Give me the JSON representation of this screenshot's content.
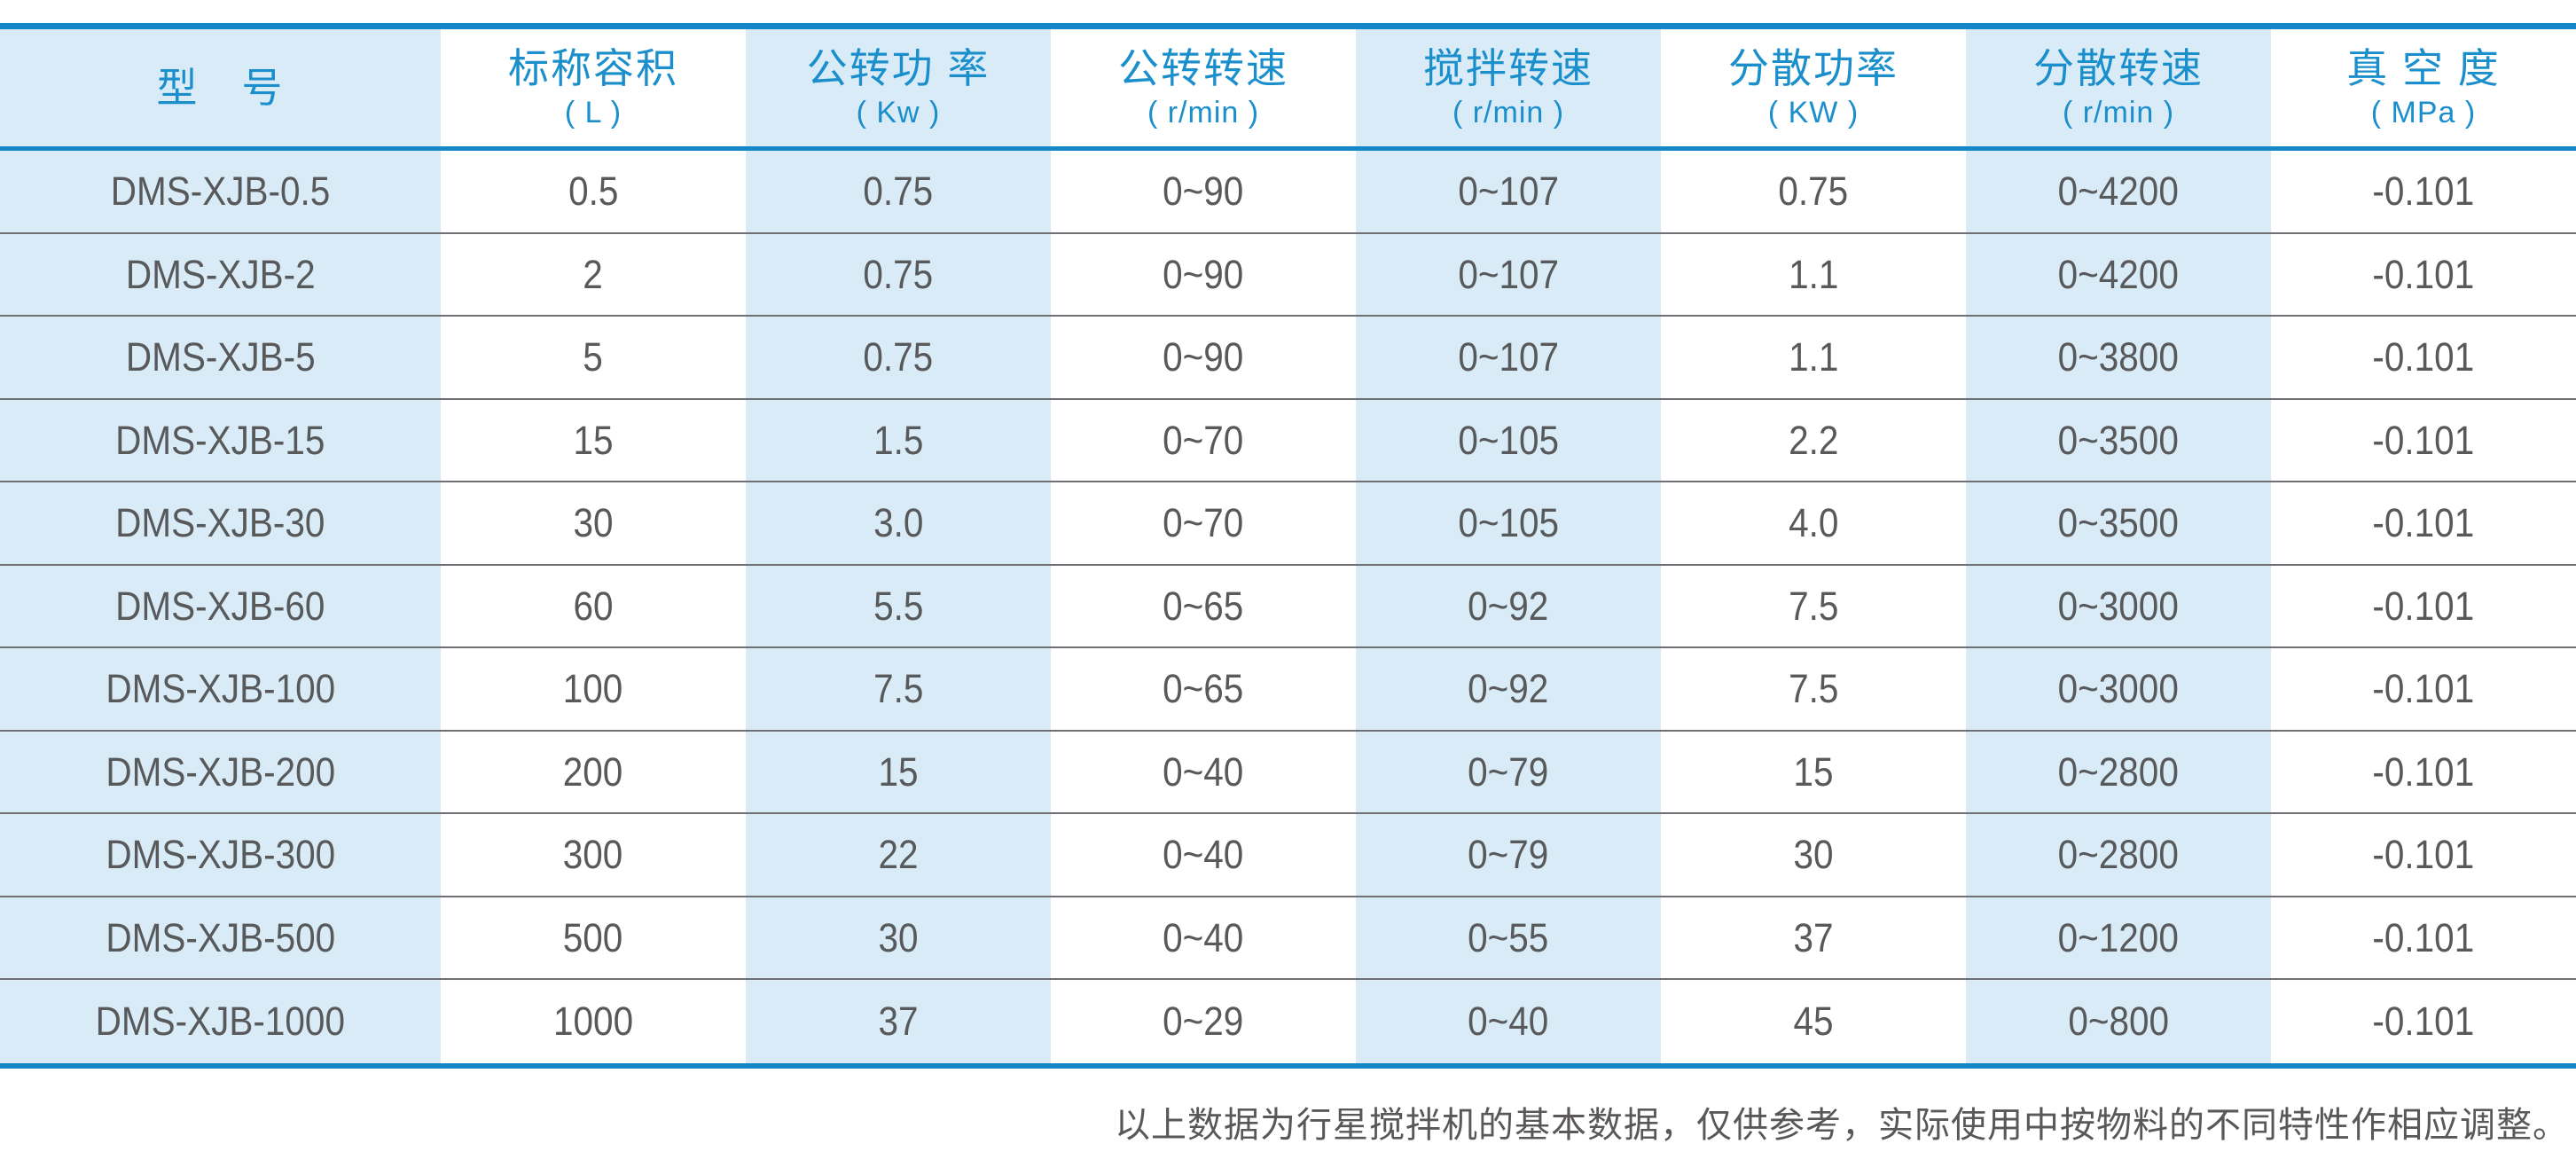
{
  "colors": {
    "accent_blue": "#1587c8",
    "header_text_blue": "#1a8fcc",
    "band_blue": "#d9ebf7",
    "row_line_gray": "#6e7073",
    "data_text": "#58595b",
    "footnote_text": "#5a5856",
    "page_bg": "#ffffff"
  },
  "table": {
    "columns": [
      {
        "key": "model",
        "name": "型　号",
        "unit": ""
      },
      {
        "key": "nominal-volume",
        "name": "标称容积",
        "unit": "( L )"
      },
      {
        "key": "revolution-power",
        "name": "公转功 率",
        "unit": "( Kw )"
      },
      {
        "key": "revolution-speed",
        "name": "公转转速",
        "unit": "( r/min )"
      },
      {
        "key": "stir-speed",
        "name": "搅拌转速",
        "unit": "( r/min )"
      },
      {
        "key": "dispersion-power",
        "name": "分散功率",
        "unit": "( KW )"
      },
      {
        "key": "dispersion-speed",
        "name": "分散转速",
        "unit": "( r/min )"
      },
      {
        "key": "vacuum-degree",
        "name": "真 空 度",
        "unit": "( MPa )"
      }
    ],
    "rows": [
      [
        "DMS-XJB-0.5",
        "0.5",
        "0.75",
        "0~90",
        "0~107",
        "0.75",
        "0~4200",
        "-0.101"
      ],
      [
        "DMS-XJB-2",
        "2",
        "0.75",
        "0~90",
        "0~107",
        "1.1",
        "0~4200",
        "-0.101"
      ],
      [
        "DMS-XJB-5",
        "5",
        "0.75",
        "0~90",
        "0~107",
        "1.1",
        "0~3800",
        "-0.101"
      ],
      [
        "DMS-XJB-15",
        "15",
        "1.5",
        "0~70",
        "0~105",
        "2.2",
        "0~3500",
        "-0.101"
      ],
      [
        "DMS-XJB-30",
        "30",
        "3.0",
        "0~70",
        "0~105",
        "4.0",
        "0~3500",
        "-0.101"
      ],
      [
        "DMS-XJB-60",
        "60",
        "5.5",
        "0~65",
        "0~92",
        "7.5",
        "0~3000",
        "-0.101"
      ],
      [
        "DMS-XJB-100",
        "100",
        "7.5",
        "0~65",
        "0~92",
        "7.5",
        "0~3000",
        "-0.101"
      ],
      [
        "DMS-XJB-200",
        "200",
        "15",
        "0~40",
        "0~79",
        "15",
        "0~2800",
        "-0.101"
      ],
      [
        "DMS-XJB-300",
        "300",
        "22",
        "0~40",
        "0~79",
        "30",
        "0~2800",
        "-0.101"
      ],
      [
        "DMS-XJB-500",
        "500",
        "30",
        "0~40",
        "0~55",
        "37",
        "0~1200",
        "-0.101"
      ],
      [
        "DMS-XJB-1000",
        "1000",
        "37",
        "0~29",
        "0~40",
        "45",
        "0~800",
        "-0.101"
      ]
    ]
  },
  "footnote": "以上数据为行星搅拌机的基本数据，仅供参考，实际使用中按物料的不同特性作相应调整。"
}
